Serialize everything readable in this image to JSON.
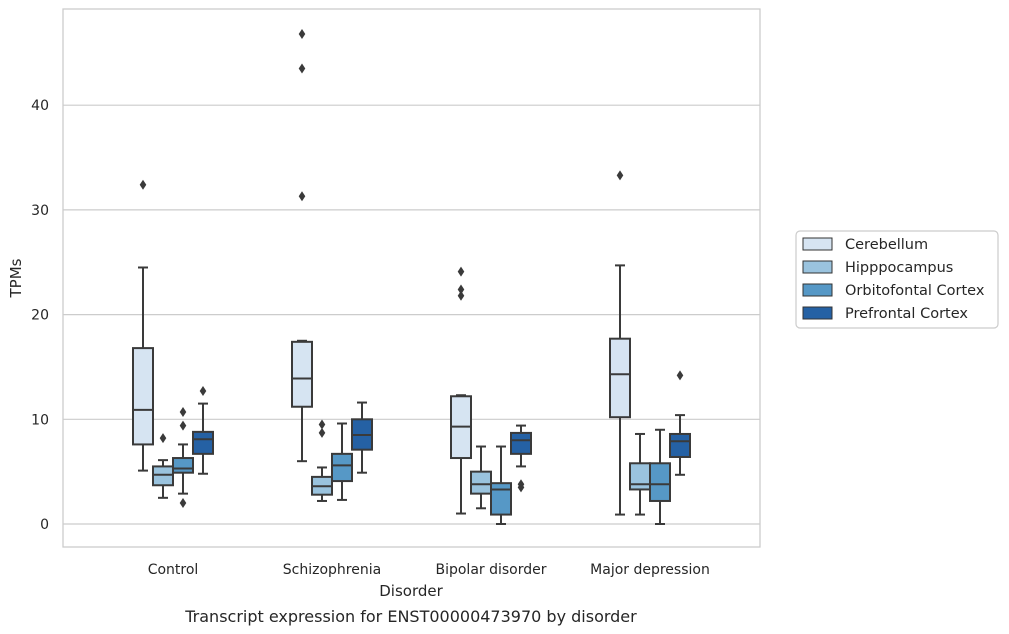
{
  "chart_data": {
    "type": "box",
    "title": "",
    "caption": "Transcript expression for ENST00000473970 by disorder",
    "xlabel": "Disorder",
    "ylabel": "TPMs",
    "ylim": [
      -2.3,
      49
    ],
    "yticks": [
      0,
      10,
      20,
      30,
      40
    ],
    "grid": "horizontal",
    "legend_position": "right",
    "categories": [
      "Control",
      "Schizophrenia",
      "Bipolar disorder",
      "Major depression"
    ],
    "series": [
      {
        "name": "Cerebellum",
        "color": "#d6e4f2",
        "boxes": [
          {
            "whisker_low": 5.1,
            "q1": 7.6,
            "median": 10.9,
            "q3": 16.8,
            "whisker_high": 24.5,
            "outliers": [
              32.4
            ]
          },
          {
            "whisker_low": 6.0,
            "q1": 11.2,
            "median": 13.9,
            "q3": 17.4,
            "whisker_high": 17.5,
            "outliers": [
              31.3,
              43.5,
              46.8
            ]
          },
          {
            "whisker_low": 1.0,
            "q1": 6.3,
            "median": 9.3,
            "q3": 12.2,
            "whisker_high": 12.3,
            "outliers": [
              21.8,
              22.4,
              24.1
            ]
          },
          {
            "whisker_low": 0.9,
            "q1": 10.2,
            "median": 14.3,
            "q3": 17.7,
            "whisker_high": 24.7,
            "outliers": [
              33.3
            ]
          }
        ]
      },
      {
        "name": "Hipppocampus",
        "color": "#9ac3de",
        "boxes": [
          {
            "whisker_low": 2.5,
            "q1": 3.7,
            "median": 4.7,
            "q3": 5.5,
            "whisker_high": 6.1,
            "outliers": [
              8.2
            ]
          },
          {
            "whisker_low": 2.2,
            "q1": 2.8,
            "median": 3.6,
            "q3": 4.5,
            "whisker_high": 5.4,
            "outliers": [
              8.7,
              9.5
            ]
          },
          {
            "whisker_low": 1.5,
            "q1": 2.9,
            "median": 3.8,
            "q3": 5.0,
            "whisker_high": 7.4,
            "outliers": []
          },
          {
            "whisker_low": 0.9,
            "q1": 3.3,
            "median": 3.8,
            "q3": 5.8,
            "whisker_high": 8.6,
            "outliers": []
          }
        ]
      },
      {
        "name": "Orbitofontal Cortex",
        "color": "#5698c6",
        "boxes": [
          {
            "whisker_low": 2.9,
            "q1": 4.9,
            "median": 5.3,
            "q3": 6.3,
            "whisker_high": 7.6,
            "outliers": [
              2.0,
              9.4,
              10.7
            ]
          },
          {
            "whisker_low": 2.3,
            "q1": 4.1,
            "median": 5.6,
            "q3": 6.7,
            "whisker_high": 9.6,
            "outliers": []
          },
          {
            "whisker_low": 0.0,
            "q1": 0.9,
            "median": 3.3,
            "q3": 3.9,
            "whisker_high": 7.4,
            "outliers": []
          },
          {
            "whisker_low": 0.0,
            "q1": 2.2,
            "median": 3.8,
            "q3": 5.8,
            "whisker_high": 9.0,
            "outliers": []
          }
        ]
      },
      {
        "name": "Prefrontal Cortex",
        "color": "#2561a4",
        "boxes": [
          {
            "whisker_low": 4.8,
            "q1": 6.7,
            "median": 8.1,
            "q3": 8.8,
            "whisker_high": 11.5,
            "outliers": [
              12.7
            ]
          },
          {
            "whisker_low": 4.9,
            "q1": 7.1,
            "median": 8.5,
            "q3": 10.0,
            "whisker_high": 11.6,
            "outliers": []
          },
          {
            "whisker_low": 5.5,
            "q1": 6.7,
            "median": 8.0,
            "q3": 8.7,
            "whisker_high": 9.4,
            "outliers": [
              3.5,
              3.8
            ]
          },
          {
            "whisker_low": 4.7,
            "q1": 6.4,
            "median": 7.9,
            "q3": 8.6,
            "whisker_high": 10.4,
            "outliers": [
              14.2
            ]
          }
        ]
      }
    ]
  }
}
